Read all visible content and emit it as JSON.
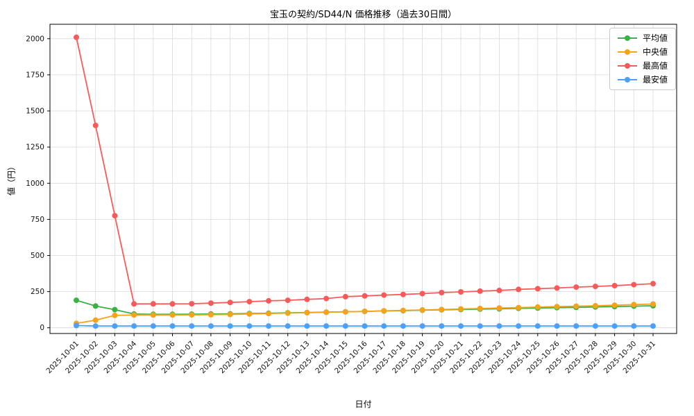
{
  "chart_data": {
    "type": "line",
    "title": "宝玉の契約/SD44/N 価格推移（過去30日間）",
    "xlabel": "日付",
    "ylabel": "値（円）",
    "grid": true,
    "legend_position": "top-right",
    "ylim": [
      -40,
      2100
    ],
    "yticks": [
      0,
      250,
      500,
      750,
      1000,
      1250,
      1500,
      1750,
      2000
    ],
    "x": [
      "2025-10-01",
      "2025-10-02",
      "2025-10-03",
      "2025-10-04",
      "2025-10-05",
      "2025-10-06",
      "2025-10-07",
      "2025-10-08",
      "2025-10-09",
      "2025-10-10",
      "2025-10-11",
      "2025-10-12",
      "2025-10-13",
      "2025-10-14",
      "2025-10-15",
      "2025-10-16",
      "2025-10-17",
      "2025-10-18",
      "2025-10-19",
      "2025-10-20",
      "2025-10-21",
      "2025-10-22",
      "2025-10-23",
      "2025-10-24",
      "2025-10-25",
      "2025-10-26",
      "2025-10-27",
      "2025-10-28",
      "2025-10-29",
      "2025-10-30",
      "2025-10-31"
    ],
    "series": [
      {
        "key": "average",
        "name": "平均値",
        "color": "#3bb143",
        "values": [
          190,
          150,
          125,
          95,
          93,
          93,
          94,
          95,
          96,
          98,
          100,
          103,
          105,
          108,
          110,
          113,
          116,
          118,
          121,
          124,
          126,
          129,
          131,
          134,
          136,
          139,
          141,
          144,
          146,
          149,
          152
        ]
      },
      {
        "key": "median",
        "name": "中央値",
        "color": "#f5a31a",
        "values": [
          30,
          52,
          85,
          88,
          88,
          88,
          89,
          90,
          92,
          95,
          98,
          101,
          104,
          107,
          110,
          113,
          117,
          120,
          123,
          126,
          130,
          133,
          136,
          139,
          143,
          146,
          149,
          152,
          156,
          160,
          164
        ]
      },
      {
        "key": "max",
        "name": "最高値",
        "color": "#f85a5a",
        "values": [
          2010,
          1400,
          775,
          165,
          165,
          165,
          166,
          170,
          175,
          180,
          186,
          190,
          196,
          202,
          215,
          220,
          226,
          230,
          236,
          243,
          248,
          253,
          258,
          265,
          270,
          275,
          281,
          286,
          291,
          298,
          305
        ]
      },
      {
        "key": "min",
        "name": "最安値",
        "color": "#4d9ff7",
        "values": [
          15,
          12,
          12,
          12,
          12,
          12,
          12,
          12,
          12,
          12,
          12,
          12,
          12,
          12,
          12,
          12,
          12,
          12,
          12,
          12,
          12,
          12,
          12,
          12,
          12,
          12,
          12,
          12,
          12,
          12,
          12
        ]
      }
    ]
  }
}
